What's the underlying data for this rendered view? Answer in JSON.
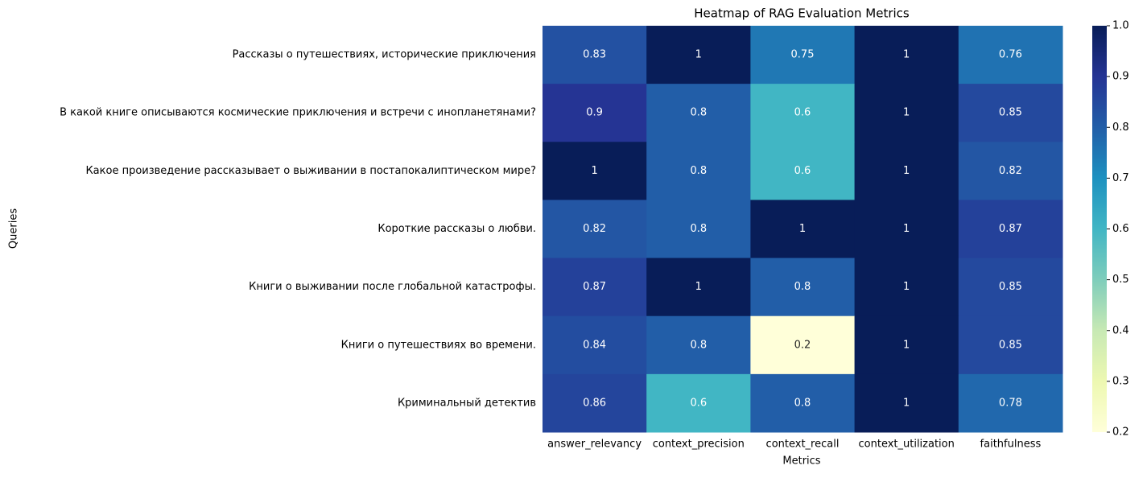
{
  "chart_data": {
    "type": "heatmap",
    "title": "Heatmap of RAG Evaluation Metrics",
    "xlabel": "Metrics",
    "ylabel": "Queries",
    "x_categories": [
      "answer_relevancy",
      "context_precision",
      "context_recall",
      "context_utilization",
      "faithfulness"
    ],
    "y_categories": [
      "Рассказы о путешествиях, исторические приключения",
      "В какой книге описываются космические приключения и встречи с инопланетянами?",
      "Какое произведение рассказывает о выживании в постапокалиптическом мире?",
      "Короткие рассказы о любви.",
      "Книги о выживании после глобальной катастрофы.",
      "Книги о путешествиях во времени.",
      "Криминальный детектив"
    ],
    "values": [
      [
        0.83,
        1,
        0.75,
        1,
        0.76
      ],
      [
        0.9,
        0.8,
        0.6,
        1,
        0.85
      ],
      [
        1,
        0.8,
        0.6,
        1,
        0.82
      ],
      [
        0.82,
        0.8,
        1,
        1,
        0.87
      ],
      [
        0.87,
        1,
        0.8,
        1,
        0.85
      ],
      [
        0.84,
        0.8,
        0.2,
        1,
        0.85
      ],
      [
        0.86,
        0.6,
        0.8,
        1,
        0.78
      ]
    ],
    "colormap": "YlGnBu",
    "clim": [
      0.2,
      1
    ],
    "cticks": [
      0.2,
      0.3,
      0.4,
      0.5,
      0.6,
      0.7,
      0.8,
      0.9,
      {
        "value": 1,
        "label": "1.0"
      }
    ]
  }
}
